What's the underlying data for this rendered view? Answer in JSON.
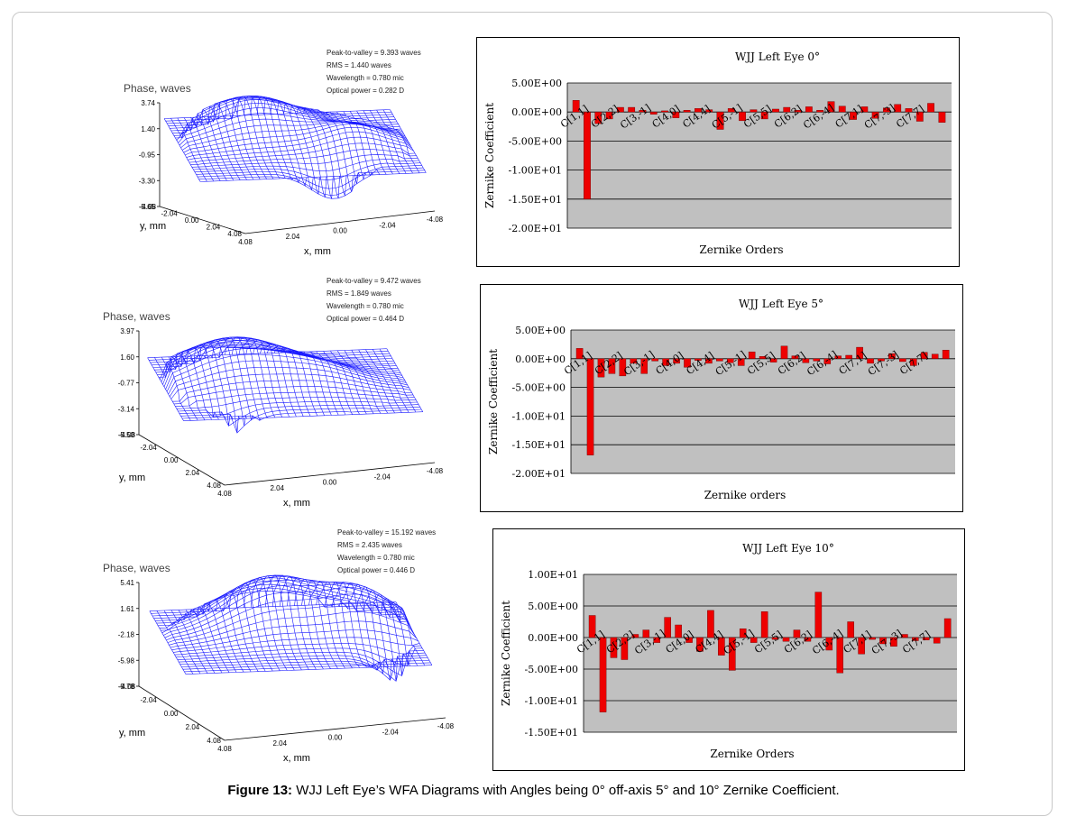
{
  "caption": {
    "label": "Figure 13:",
    "text": "WJJ Left Eye’s WFA Diagrams with Angles being 0° off-axis 5° and 10° Zernike Coefficient."
  },
  "wavefront_panels": [
    {
      "stats": [
        "Peak-to-valley = 9.393 waves",
        "RMS = 1.440 waves",
        "Wavelength = 0.780 mic",
        "Optical power = 0.282 D"
      ],
      "z_title": "Phase, waves",
      "z_ticks": [
        "3.74",
        "1.40",
        "-0.95",
        "-3.30",
        "-5.65"
      ],
      "y_label": "y, mm",
      "y_ticks": [
        "-4.08",
        "-2.04",
        "0.00",
        "2.04",
        "4.08"
      ],
      "x_label": "x, mm",
      "x_ticks": [
        "4.08",
        "2.04",
        "0.00",
        "-2.04",
        "-4.08"
      ]
    },
    {
      "stats": [
        "Peak-to-valley = 9.472 waves",
        "RMS = 1.849 waves",
        "Wavelength = 0.780 mic",
        "Optical power = 0.464 D"
      ],
      "z_title": "Phase, waves",
      "z_ticks": [
        "3.97",
        "1.60",
        "-0.77",
        "-3.14",
        "-5.50"
      ],
      "y_label": "y, mm",
      "y_ticks": [
        "-4.08",
        "-2.04",
        "0.00",
        "2.04",
        "4.08"
      ],
      "x_label": "x, mm",
      "x_ticks": [
        "4.08",
        "2.04",
        "0.00",
        "-2.04",
        "-4.08"
      ]
    },
    {
      "stats": [
        "Peak-to-valley = 15.192 waves",
        "RMS = 2.435 waves",
        "Wavelength = 0.780 mic",
        "Optical power = 0.446 D"
      ],
      "z_title": "Phase, waves",
      "z_ticks": [
        "5.41",
        "1.61",
        "-2.18",
        "-5.98",
        "-9.78"
      ],
      "y_label": "y, mm",
      "y_ticks": [
        "-4.08",
        "-2.04",
        "0.00",
        "2.04",
        "4.08"
      ],
      "x_label": "x, mm",
      "x_ticks": [
        "4.08",
        "2.04",
        "0.00",
        "-2.04",
        "-4.08"
      ]
    }
  ],
  "colors": {
    "mesh": "#1a1aff",
    "bar": "#ee0000",
    "plot_bg": "#c0c0c0"
  },
  "chart_data": [
    {
      "type": "bar",
      "title": "WJJ Left Eye 0°",
      "xlabel": "Zernike Orders",
      "ylabel": "Zernike Coefficient",
      "ylim": [
        -20,
        5
      ],
      "y_ticks": [
        5,
        0,
        -5,
        -10,
        -15,
        -20
      ],
      "y_tick_labels": [
        "5.00E+00",
        "0.00E+00",
        "-5.00E+00",
        "-1.00E+01",
        "-1.50E+01",
        "-2.00E+01"
      ],
      "category_labels": [
        "C[1,1]",
        "C[2,2]",
        "C[3,-1]",
        "C[4,0]",
        "C[4,4]",
        "C[5,-1]",
        "C[5,5]",
        "C[6,2]",
        "C[6,-4]",
        "C[7,1]",
        "C[7,-3]",
        "C[7,7]"
      ],
      "values": [
        2.0,
        -15.0,
        -2.0,
        -1.2,
        0.8,
        0.8,
        0.3,
        -0.4,
        0.2,
        -1.0,
        0.3,
        0.6,
        0.4,
        -3.0,
        0.6,
        -1.5,
        0.4,
        -1.2,
        0.5,
        0.8,
        0.3,
        0.9,
        0.3,
        1.8,
        1.0,
        -1.3,
        0.9,
        -1.1,
        0.7,
        1.3,
        0.6,
        -1.6,
        1.5,
        -1.8
      ]
    },
    {
      "type": "bar",
      "title": "WJJ Left Eye 5°",
      "xlabel": "Zernike orders",
      "ylabel": "Zernike Coefficient",
      "ylim": [
        -20,
        5
      ],
      "y_ticks": [
        5,
        0,
        -5,
        -10,
        -15,
        -20
      ],
      "y_tick_labels": [
        "5.00E+00",
        "0.00E+00",
        "-5.00E+00",
        "-1.00E+01",
        "-1.50E+01",
        "-2.00E+01"
      ],
      "category_labels": [
        "C[1,1]",
        "C[2,2]",
        "C[3,-1]",
        "C[4,0]",
        "C[4,4]",
        "C[5,-1]",
        "C[5,5]",
        "C[6,2]",
        "C[6,-4]",
        "C[7,1]",
        "C[7,-3]",
        "C[7,7]"
      ],
      "values": [
        1.8,
        -16.8,
        -3.2,
        -2.6,
        -3.0,
        -0.8,
        -2.6,
        -0.4,
        -1.2,
        -0.8,
        -1.5,
        -0.3,
        -0.8,
        -0.4,
        -0.7,
        -1.2,
        1.2,
        0.4,
        -0.6,
        2.2,
        0.5,
        -0.7,
        -0.4,
        -0.9,
        0.5,
        0.6,
        2.0,
        -0.8,
        -0.4,
        0.9,
        -0.5,
        -1.2,
        1.1,
        0.8,
        1.5
      ]
    },
    {
      "type": "bar",
      "title": "WJJ Left Eye 10°",
      "xlabel": "Zernike Orders",
      "ylabel": "Zernike Coefficient",
      "ylim": [
        -15,
        10
      ],
      "y_ticks": [
        10,
        5,
        0,
        -5,
        -10,
        -15
      ],
      "y_tick_labels": [
        "1.00E+01",
        "5.00E+00",
        "0.00E+00",
        "-5.00E+00",
        "-1.00E+01",
        "-1.50E+01"
      ],
      "category_labels": [
        "C[1,1]",
        "C[2,2]",
        "C[3,-1]",
        "C[4,0]",
        "C[4,4]",
        "C[5,-1]",
        "C[5,5]",
        "C[6,2]",
        "C[6,-4]",
        "C[7,1]",
        "C[7,-3]",
        "C[7,7]"
      ],
      "values": [
        3.5,
        -11.8,
        -3.2,
        -3.5,
        0.5,
        1.2,
        -0.8,
        3.2,
        2.0,
        -0.8,
        -2.2,
        4.3,
        -2.8,
        -5.2,
        1.4,
        -0.8,
        4.1,
        -0.3,
        -0.6,
        1.2,
        -0.6,
        7.2,
        -2.0,
        -5.6,
        2.5,
        -2.6,
        -0.3,
        -1.0,
        -1.4,
        0.5,
        -0.5,
        -0.4,
        -0.9,
        3.0
      ]
    }
  ]
}
